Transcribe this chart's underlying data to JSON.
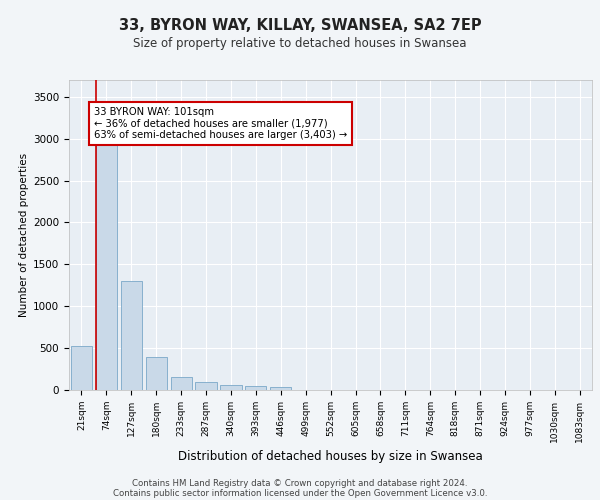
{
  "title1": "33, BYRON WAY, KILLAY, SWANSEA, SA2 7EP",
  "title2": "Size of property relative to detached houses in Swansea",
  "xlabel": "Distribution of detached houses by size in Swansea",
  "ylabel": "Number of detached properties",
  "footer1": "Contains HM Land Registry data © Crown copyright and database right 2024.",
  "footer2": "Contains public sector information licensed under the Open Government Licence v3.0.",
  "bin_labels": [
    "21sqm",
    "74sqm",
    "127sqm",
    "180sqm",
    "233sqm",
    "287sqm",
    "340sqm",
    "393sqm",
    "446sqm",
    "499sqm",
    "552sqm",
    "605sqm",
    "658sqm",
    "711sqm",
    "764sqm",
    "818sqm",
    "871sqm",
    "924sqm",
    "977sqm",
    "1030sqm",
    "1083sqm"
  ],
  "bar_values": [
    520,
    2950,
    1300,
    390,
    155,
    90,
    60,
    50,
    40,
    0,
    0,
    0,
    0,
    0,
    0,
    0,
    0,
    0,
    0,
    0,
    0
  ],
  "bar_color": "#c9d9e8",
  "bar_edge_color": "#7aa8c8",
  "vline_color": "#cc0000",
  "annotation_line1": "33 BYRON WAY: 101sqm",
  "annotation_line2": "← 36% of detached houses are smaller (1,977)",
  "annotation_line3": "63% of semi-detached houses are larger (3,403) →",
  "ylim": [
    0,
    3700
  ],
  "yticks": [
    0,
    500,
    1000,
    1500,
    2000,
    2500,
    3000,
    3500
  ],
  "bg_color": "#f2f5f8",
  "plot_bg_color": "#e8eef4",
  "grid_color": "#ffffff",
  "annotation_rect_color": "#cc0000"
}
